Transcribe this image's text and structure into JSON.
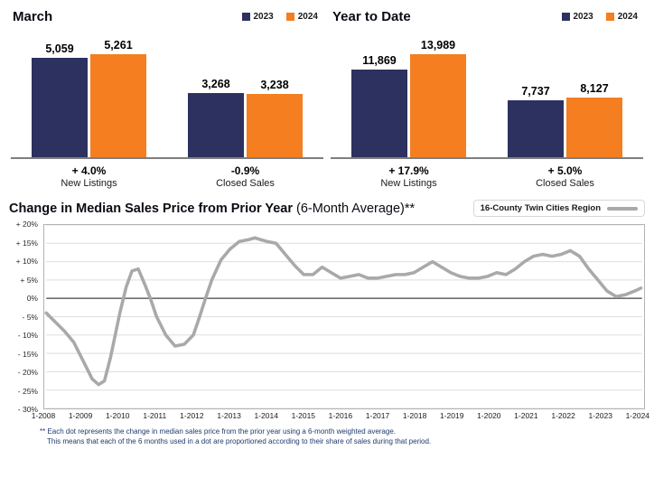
{
  "colors": {
    "navy": "#2c315f",
    "orange": "#f47e20",
    "line_gray": "#a9a9a9",
    "footnote": "#1f3a6e"
  },
  "chart_data": [
    {
      "type": "bar",
      "title": "March",
      "legend": [
        "2023",
        "2024"
      ],
      "series_colors": [
        "#2c315f",
        "#f47e20"
      ],
      "groups": [
        {
          "label": "New Listings",
          "change": "+ 4.0%",
          "values": [
            5059,
            5261
          ],
          "labels": [
            "5,059",
            "5,261"
          ]
        },
        {
          "label": "Closed Sales",
          "change": "-0.9%",
          "values": [
            3268,
            3238
          ],
          "labels": [
            "3,268",
            "3,238"
          ]
        }
      ]
    },
    {
      "type": "bar",
      "title": "Year to Date",
      "legend": [
        "2023",
        "2024"
      ],
      "series_colors": [
        "#2c315f",
        "#f47e20"
      ],
      "groups": [
        {
          "label": "New Listings",
          "change": "+ 17.9%",
          "values": [
            11869,
            13989
          ],
          "labels": [
            "11,869",
            "13,989"
          ]
        },
        {
          "label": "Closed Sales",
          "change": "+ 5.0%",
          "values": [
            7737,
            8127
          ],
          "labels": [
            "7,737",
            "8,127"
          ]
        }
      ]
    },
    {
      "type": "line",
      "title": "Change in Median Sales Price from Prior Year",
      "title_suffix": " (6-Month Average)**",
      "legend": "16-County Twin Cities Region",
      "line_color": "#a9a9a9",
      "ylim": [
        -30,
        20
      ],
      "xlim": [
        2008,
        2024.2
      ],
      "grid": true,
      "legend_position": "top-right",
      "y_ticks": [
        "+ 20%",
        "+ 15%",
        "+ 10%",
        "+ 5%",
        "0%",
        "- 5%",
        "- 10%",
        "- 15%",
        "- 20%",
        "- 25%",
        "- 30%"
      ],
      "x_ticks": [
        "1-2008",
        "1-2009",
        "1-2010",
        "1-2011",
        "1-2012",
        "1-2013",
        "1-2014",
        "1-2015",
        "1-2016",
        "1-2017",
        "1-2018",
        "1-2019",
        "1-2020",
        "1-2021",
        "1-2022",
        "1-2023",
        "1-2024"
      ],
      "series": [
        {
          "name": "16-County Twin Cities Region",
          "points": [
            [
              2008.0,
              -4
            ],
            [
              2008.25,
              -6.5
            ],
            [
              2008.5,
              -9
            ],
            [
              2008.75,
              -12
            ],
            [
              2009.0,
              -17
            ],
            [
              2009.25,
              -22
            ],
            [
              2009.42,
              -23.5
            ],
            [
              2009.58,
              -22.5
            ],
            [
              2009.75,
              -16
            ],
            [
              2010.0,
              -4
            ],
            [
              2010.17,
              3
            ],
            [
              2010.33,
              7.5
            ],
            [
              2010.5,
              8
            ],
            [
              2010.67,
              4
            ],
            [
              2010.83,
              0
            ],
            [
              2011.0,
              -5
            ],
            [
              2011.25,
              -10
            ],
            [
              2011.5,
              -13
            ],
            [
              2011.75,
              -12.5
            ],
            [
              2012.0,
              -10
            ],
            [
              2012.17,
              -5
            ],
            [
              2012.33,
              0
            ],
            [
              2012.5,
              5
            ],
            [
              2012.75,
              10.5
            ],
            [
              2013.0,
              13.5
            ],
            [
              2013.25,
              15.5
            ],
            [
              2013.5,
              16
            ],
            [
              2013.67,
              16.5
            ],
            [
              2013.83,
              16
            ],
            [
              2014.0,
              15.5
            ],
            [
              2014.25,
              15
            ],
            [
              2014.5,
              12
            ],
            [
              2014.75,
              9
            ],
            [
              2015.0,
              6.5
            ],
            [
              2015.25,
              6.5
            ],
            [
              2015.5,
              8.5
            ],
            [
              2015.75,
              7
            ],
            [
              2016.0,
              5.5
            ],
            [
              2016.25,
              6
            ],
            [
              2016.5,
              6.5
            ],
            [
              2016.75,
              5.5
            ],
            [
              2017.0,
              5.5
            ],
            [
              2017.25,
              6
            ],
            [
              2017.5,
              6.5
            ],
            [
              2017.75,
              6.5
            ],
            [
              2018.0,
              7
            ],
            [
              2018.25,
              8.5
            ],
            [
              2018.5,
              10
            ],
            [
              2018.75,
              8.5
            ],
            [
              2019.0,
              7
            ],
            [
              2019.25,
              6
            ],
            [
              2019.5,
              5.5
            ],
            [
              2019.75,
              5.5
            ],
            [
              2020.0,
              6
            ],
            [
              2020.25,
              7
            ],
            [
              2020.5,
              6.5
            ],
            [
              2020.75,
              8
            ],
            [
              2021.0,
              10
            ],
            [
              2021.25,
              11.5
            ],
            [
              2021.5,
              12
            ],
            [
              2021.75,
              11.5
            ],
            [
              2022.0,
              12
            ],
            [
              2022.25,
              13
            ],
            [
              2022.5,
              11.5
            ],
            [
              2022.75,
              8
            ],
            [
              2023.0,
              5
            ],
            [
              2023.25,
              2
            ],
            [
              2023.5,
              0.5
            ],
            [
              2023.75,
              1
            ],
            [
              2024.0,
              2
            ],
            [
              2024.17,
              2.8
            ]
          ]
        }
      ]
    }
  ],
  "footnote": {
    "line1": "** Each dot represents the change in median sales price from the prior year using a 6-month weighted average.",
    "line2": "This means that each of the 6 months used in a dot are proportioned according to their share of sales during that period."
  }
}
